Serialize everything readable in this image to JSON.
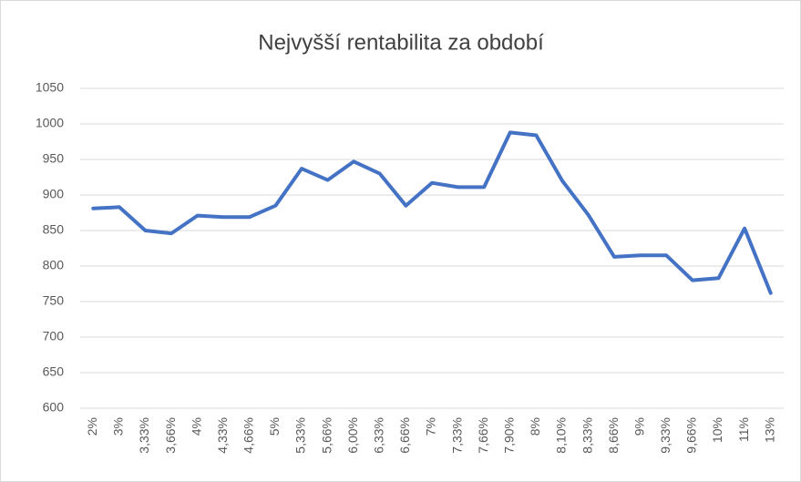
{
  "chart_data": {
    "type": "line",
    "title": "Nejvyšší rentabilita za období",
    "categories": [
      "2%",
      "3%",
      "3,33%",
      "3,66%",
      "4%",
      "4,33%",
      "4,66%",
      "5%",
      "5,33%",
      "5,66%",
      "6,00%",
      "6,33%",
      "6,66%",
      "7%",
      "7,33%",
      "7,66%",
      "7,90%",
      "8%",
      "8,10%",
      "8,33%",
      "8,66%",
      "9%",
      "9,33%",
      "9,66%",
      "10%",
      "11%",
      "13%"
    ],
    "values": [
      881,
      883,
      850,
      846,
      871,
      869,
      869,
      885,
      937,
      921,
      947,
      930,
      885,
      917,
      911,
      911,
      988,
      984,
      920,
      872,
      813,
      815,
      815,
      780,
      783,
      853,
      762
    ],
    "color": "#4472c4",
    "ylim": [
      600,
      1050
    ],
    "yticks": [
      600,
      650,
      700,
      750,
      800,
      850,
      900,
      950,
      1000,
      1050
    ],
    "grid": true
  }
}
